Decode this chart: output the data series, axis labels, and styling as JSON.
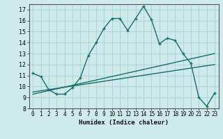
{
  "xlabel": "Humidex (Indice chaleur)",
  "background_color": "#ceeaea",
  "grid_color": "#b0d8d8",
  "line_color": "#1a6b6b",
  "xlim": [
    -0.5,
    23.5
  ],
  "ylim": [
    8,
    17.5
  ],
  "yticks": [
    8,
    9,
    10,
    11,
    12,
    13,
    14,
    15,
    16,
    17
  ],
  "xticks": [
    0,
    1,
    2,
    3,
    4,
    5,
    6,
    7,
    8,
    9,
    10,
    11,
    12,
    13,
    14,
    15,
    16,
    17,
    18,
    19,
    20,
    21,
    22,
    23
  ],
  "curve1_x": [
    0,
    1,
    2,
    3,
    4,
    5,
    6,
    7,
    8,
    9,
    10,
    11,
    12,
    13,
    14,
    15,
    16,
    17,
    18,
    19,
    20,
    21,
    22,
    23
  ],
  "curve1_y": [
    11.2,
    10.9,
    9.7,
    9.3,
    9.3,
    9.9,
    10.8,
    12.8,
    14.0,
    15.3,
    16.2,
    16.2,
    15.1,
    16.2,
    17.3,
    16.1,
    13.9,
    14.4,
    14.2,
    13.0,
    12.1,
    9.0,
    8.2,
    9.4
  ],
  "line2_x": [
    0,
    23
  ],
  "line2_y": [
    9.3,
    13.0
  ],
  "line3_x": [
    0,
    23
  ],
  "line3_y": [
    9.5,
    12.0
  ]
}
